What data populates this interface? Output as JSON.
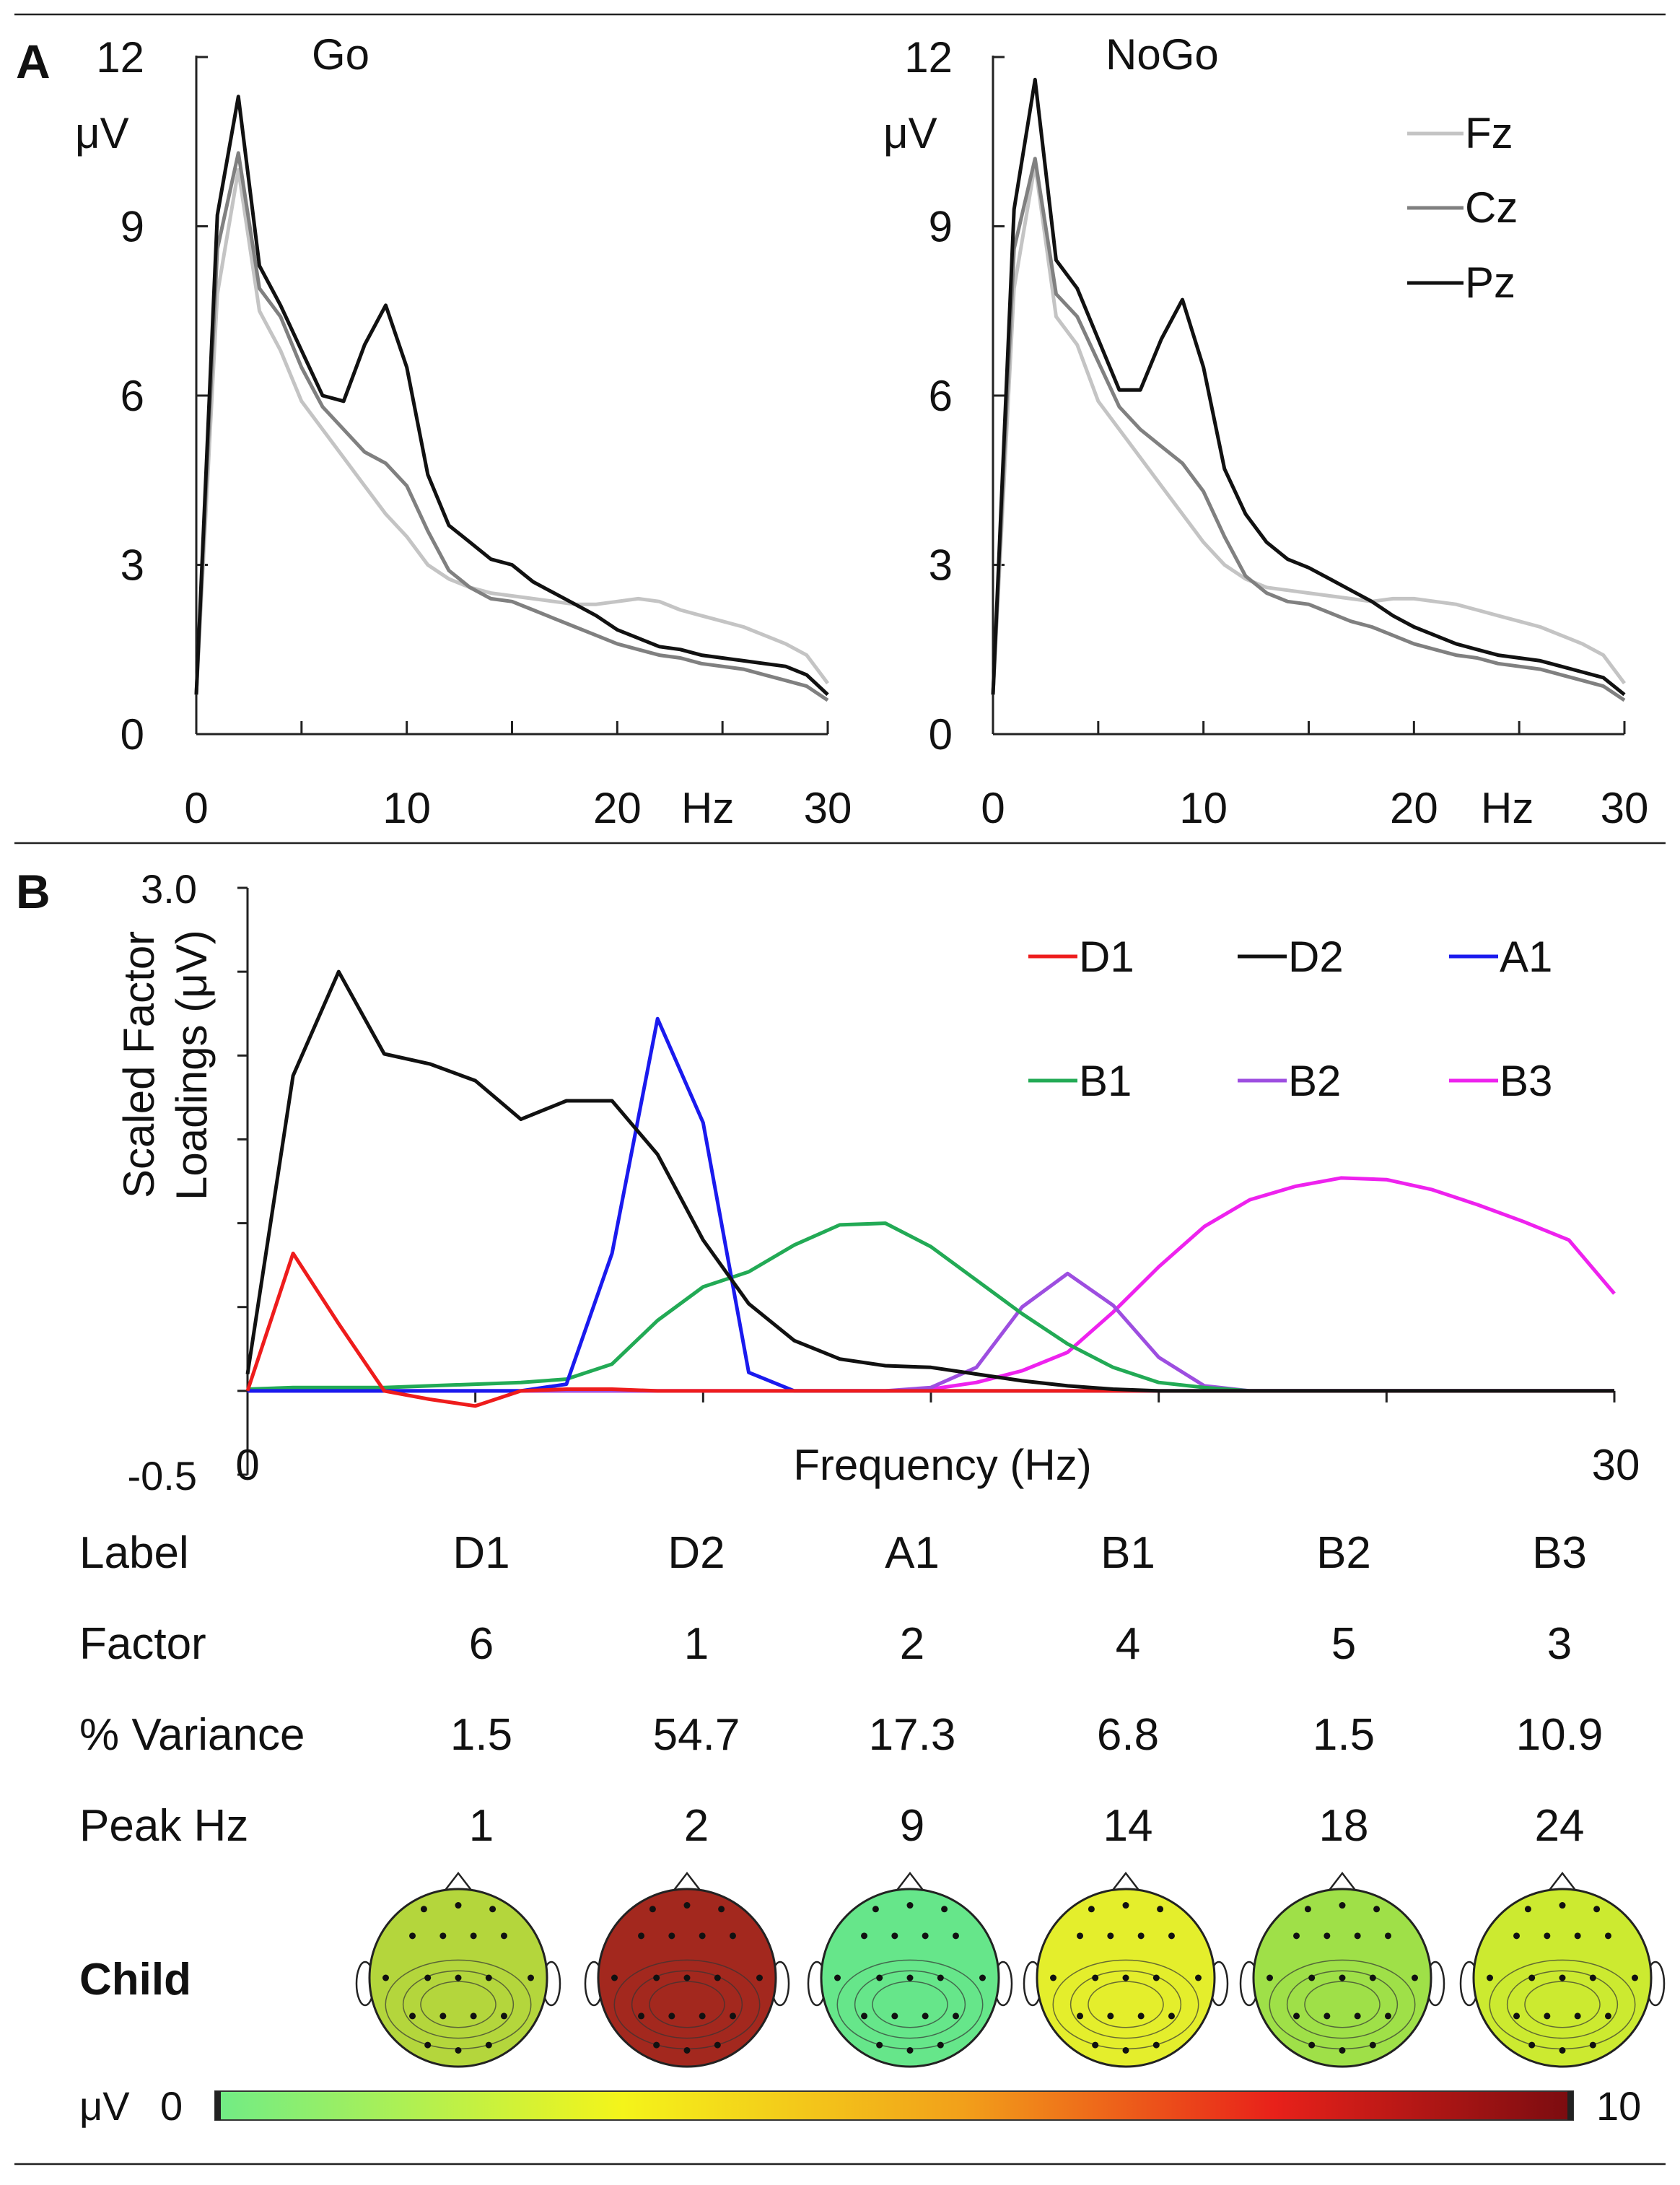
{
  "panel_a": {
    "label": "A",
    "y_unit": "μV",
    "x_unit": "Hz",
    "legend": [
      "Fz",
      "Cz",
      "Pz"
    ],
    "legend_colors": {
      "Fz": "#c4c4c4",
      "Cz": "#808080",
      "Pz": "#111111"
    }
  },
  "panel_b": {
    "label": "B",
    "ylabel_line1": "Scaled Factor",
    "ylabel_line2": "Loadings (μV)",
    "xlabel": "Frequency (Hz)",
    "table": {
      "headers": [
        "Label",
        "Factor",
        "% Variance",
        "Peak Hz"
      ],
      "columns": [
        {
          "label": "D1",
          "factor": "6",
          "variance": "1.5",
          "peak": "1"
        },
        {
          "label": "D2",
          "factor": "1",
          "variance": "54.7",
          "peak": "2"
        },
        {
          "label": "A1",
          "factor": "2",
          "variance": "17.3",
          "peak": "9"
        },
        {
          "label": "B1",
          "factor": "4",
          "variance": "6.8",
          "peak": "14"
        },
        {
          "label": "B2",
          "factor": "5",
          "variance": "1.5",
          "peak": "18"
        },
        {
          "label": "B3",
          "factor": "3",
          "variance": "10.9",
          "peak": "24"
        }
      ]
    },
    "row_label": "Child",
    "topomaps": [
      {
        "factor": "D1",
        "color": "#b4d63c"
      },
      {
        "factor": "D2",
        "color": "#a3281e"
      },
      {
        "factor": "A1",
        "color": "#66e68a"
      },
      {
        "factor": "B1",
        "color": "#e4ee2c"
      },
      {
        "factor": "B2",
        "color": "#9fe048"
      },
      {
        "factor": "B3",
        "color": "#ccea30"
      }
    ],
    "colorbar": {
      "unit": "μV",
      "min_label": "0",
      "max_label": "10",
      "min": 0,
      "max": 10
    }
  },
  "chart_data": [
    {
      "type": "line",
      "title": "Go",
      "xlabel": "Hz",
      "ylabel": "μV",
      "xlim": [
        0,
        30
      ],
      "ylim": [
        0,
        12
      ],
      "x_ticks": [
        "0",
        "10",
        "20",
        "30"
      ],
      "y_ticks": [
        "0",
        "3",
        "6",
        "9",
        "12"
      ],
      "x": [
        0,
        1,
        2,
        3,
        4,
        5,
        6,
        7,
        8,
        9,
        10,
        11,
        12,
        13,
        14,
        15,
        16,
        17,
        18,
        19,
        20,
        21,
        22,
        23,
        24,
        25,
        26,
        27,
        28,
        29,
        30
      ],
      "series": [
        {
          "name": "Fz",
          "color": "#c4c4c4",
          "values": [
            0.7,
            7.8,
            10.0,
            7.5,
            6.8,
            5.9,
            5.4,
            4.9,
            4.4,
            3.9,
            3.5,
            3.0,
            2.75,
            2.6,
            2.5,
            2.45,
            2.4,
            2.35,
            2.3,
            2.3,
            2.35,
            2.4,
            2.35,
            2.2,
            2.1,
            2.0,
            1.9,
            1.75,
            1.6,
            1.4,
            0.9
          ]
        },
        {
          "name": "Cz",
          "color": "#808080",
          "values": [
            0.7,
            8.6,
            10.3,
            7.9,
            7.4,
            6.5,
            5.8,
            5.4,
            5.0,
            4.8,
            4.4,
            3.6,
            2.9,
            2.6,
            2.4,
            2.35,
            2.2,
            2.05,
            1.9,
            1.75,
            1.6,
            1.5,
            1.4,
            1.35,
            1.25,
            1.2,
            1.15,
            1.05,
            0.95,
            0.85,
            0.6
          ]
        },
        {
          "name": "Pz",
          "color": "#111111",
          "values": [
            0.7,
            9.2,
            11.3,
            8.3,
            7.6,
            6.8,
            6.0,
            5.9,
            6.9,
            7.6,
            6.5,
            4.6,
            3.7,
            3.4,
            3.1,
            3.0,
            2.7,
            2.5,
            2.3,
            2.1,
            1.85,
            1.7,
            1.55,
            1.5,
            1.4,
            1.35,
            1.3,
            1.25,
            1.2,
            1.05,
            0.7
          ]
        }
      ]
    },
    {
      "type": "line",
      "title": "NoGo",
      "xlabel": "Hz",
      "ylabel": "μV",
      "xlim": [
        0,
        30
      ],
      "ylim": [
        0,
        12
      ],
      "x_ticks": [
        "0",
        "10",
        "20",
        "30"
      ],
      "y_ticks": [
        "0",
        "3",
        "6",
        "9",
        "12"
      ],
      "x": [
        0,
        1,
        2,
        3,
        4,
        5,
        6,
        7,
        8,
        9,
        10,
        11,
        12,
        13,
        14,
        15,
        16,
        17,
        18,
        19,
        20,
        21,
        22,
        23,
        24,
        25,
        26,
        27,
        28,
        29,
        30
      ],
      "series": [
        {
          "name": "Fz",
          "color": "#c4c4c4",
          "values": [
            0.7,
            7.9,
            10.1,
            7.4,
            6.9,
            5.9,
            5.4,
            4.9,
            4.4,
            3.9,
            3.4,
            3.0,
            2.75,
            2.6,
            2.55,
            2.5,
            2.45,
            2.4,
            2.35,
            2.4,
            2.4,
            2.35,
            2.3,
            2.2,
            2.1,
            2.0,
            1.9,
            1.75,
            1.6,
            1.4,
            0.9
          ]
        },
        {
          "name": "Cz",
          "color": "#808080",
          "values": [
            0.7,
            8.6,
            10.2,
            7.8,
            7.4,
            6.6,
            5.8,
            5.4,
            5.1,
            4.8,
            4.3,
            3.5,
            2.8,
            2.5,
            2.35,
            2.3,
            2.15,
            2.0,
            1.9,
            1.75,
            1.6,
            1.5,
            1.4,
            1.35,
            1.25,
            1.2,
            1.15,
            1.05,
            0.95,
            0.85,
            0.6
          ]
        },
        {
          "name": "Pz",
          "color": "#111111",
          "values": [
            0.7,
            9.3,
            11.6,
            8.4,
            7.9,
            7.0,
            6.1,
            6.1,
            7.0,
            7.7,
            6.5,
            4.7,
            3.9,
            3.4,
            3.1,
            2.95,
            2.75,
            2.55,
            2.35,
            2.1,
            1.9,
            1.75,
            1.6,
            1.5,
            1.4,
            1.35,
            1.3,
            1.2,
            1.1,
            1.0,
            0.7
          ]
        }
      ]
    },
    {
      "type": "line",
      "title": "",
      "xlabel": "Frequency (Hz)",
      "ylabel": "Scaled Factor Loadings (μV)",
      "xlim": [
        0,
        30
      ],
      "ylim": [
        -0.5,
        3.0
      ],
      "x_ticks": [
        "0",
        "30"
      ],
      "y_ticks": [
        "-0.5",
        "3.0"
      ],
      "x": [
        0,
        1,
        2,
        3,
        4,
        5,
        6,
        7,
        8,
        9,
        10,
        11,
        12,
        13,
        14,
        15,
        16,
        17,
        18,
        19,
        20,
        21,
        22,
        23,
        24,
        25,
        26,
        27,
        28,
        29,
        30
      ],
      "series": [
        {
          "name": "D1",
          "color": "#ee1c1c",
          "values": [
            0.0,
            0.82,
            0.4,
            0.0,
            -0.05,
            -0.09,
            0.0,
            0.01,
            0.01,
            0.0,
            0.0,
            0.0,
            0.0,
            0.0,
            0.0,
            0.0,
            0.0,
            0.0,
            0.0,
            0.0,
            0.0,
            0.0,
            0.0,
            0.0,
            0.0,
            0.0,
            0.0,
            0.0,
            0.0,
            0.0,
            0.0
          ]
        },
        {
          "name": "D2",
          "color": "#111111",
          "values": [
            0.1,
            1.88,
            2.5,
            2.01,
            1.95,
            1.85,
            1.62,
            1.73,
            1.73,
            1.41,
            0.9,
            0.52,
            0.3,
            0.19,
            0.15,
            0.14,
            0.1,
            0.06,
            0.03,
            0.01,
            0.0,
            0.0,
            0.0,
            0.0,
            0.0,
            0.0,
            0.0,
            0.0,
            0.0,
            0.0,
            0.0
          ]
        },
        {
          "name": "A1",
          "color": "#1a1aee",
          "values": [
            0.0,
            0.0,
            0.0,
            0.0,
            0.0,
            0.0,
            0.0,
            0.04,
            0.82,
            2.22,
            1.6,
            0.11,
            0.0,
            0.0,
            0.0,
            0.0,
            0.0,
            0.0,
            0.0,
            0.0,
            0.0,
            0.0,
            0.0,
            0.0,
            0.0,
            0.0,
            0.0,
            0.0,
            0.0,
            0.0,
            0.0
          ]
        },
        {
          "name": "B1",
          "color": "#22aa55",
          "values": [
            0.01,
            0.02,
            0.02,
            0.02,
            0.03,
            0.04,
            0.05,
            0.07,
            0.16,
            0.42,
            0.62,
            0.71,
            0.87,
            0.99,
            1.0,
            0.86,
            0.66,
            0.46,
            0.28,
            0.14,
            0.05,
            0.02,
            0.0,
            0.0,
            0.0,
            0.0,
            0.0,
            0.0,
            0.0,
            0.0,
            0.0
          ]
        },
        {
          "name": "B2",
          "color": "#9d4ee0",
          "values": [
            0.0,
            0.0,
            0.0,
            0.0,
            0.0,
            0.0,
            0.0,
            0.0,
            0.0,
            0.0,
            0.0,
            0.0,
            0.0,
            0.0,
            0.0,
            0.02,
            0.14,
            0.5,
            0.7,
            0.51,
            0.2,
            0.03,
            0.0,
            0.0,
            0.0,
            0.0,
            0.0,
            0.0,
            0.0,
            0.0,
            0.0
          ]
        },
        {
          "name": "B3",
          "color": "#ee22ee",
          "values": [
            0.0,
            0.0,
            0.0,
            0.0,
            0.0,
            0.0,
            0.0,
            0.0,
            0.0,
            0.0,
            0.0,
            0.0,
            0.0,
            0.0,
            0.0,
            0.01,
            0.05,
            0.12,
            0.23,
            0.47,
            0.74,
            0.98,
            1.14,
            1.22,
            1.27,
            1.26,
            1.2,
            1.11,
            1.01,
            0.9,
            0.58
          ]
        }
      ]
    }
  ]
}
